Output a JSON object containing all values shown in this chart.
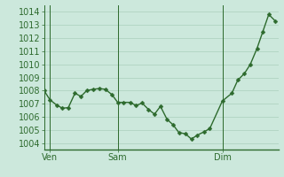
{
  "background_color": "#cce8dc",
  "plot_bg_color": "#cce8dc",
  "line_color": "#2d6a2d",
  "marker_color": "#2d6a2d",
  "grid_color": "#aacfbc",
  "axis_color": "#2d6a2d",
  "tick_label_color": "#2d6a2d",
  "ylim": [
    1003.5,
    1014.5
  ],
  "yticks": [
    1004,
    1005,
    1006,
    1007,
    1008,
    1009,
    1010,
    1011,
    1012,
    1013,
    1014
  ],
  "xtick_labels": [
    "Ven",
    "Sam",
    "Dim"
  ],
  "xtick_positions": [
    8,
    100,
    242
  ],
  "vline_positions": [
    8,
    100,
    242
  ],
  "xlim": [
    0,
    318
  ],
  "x": [
    0,
    8,
    17,
    25,
    33,
    42,
    50,
    58,
    67,
    75,
    83,
    92,
    100,
    108,
    117,
    125,
    133,
    142,
    150,
    158,
    167,
    175,
    183,
    192,
    200,
    208,
    217,
    225,
    242,
    255,
    263,
    272,
    280,
    289,
    297,
    305,
    314
  ],
  "y": [
    1008.0,
    1007.3,
    1006.9,
    1006.65,
    1006.7,
    1007.8,
    1007.55,
    1008.0,
    1008.1,
    1008.15,
    1008.1,
    1007.7,
    1007.1,
    1007.1,
    1007.1,
    1006.85,
    1007.05,
    1006.55,
    1006.2,
    1006.8,
    1005.8,
    1005.4,
    1004.8,
    1004.7,
    1004.3,
    1004.6,
    1004.85,
    1005.1,
    1007.2,
    1007.8,
    1008.8,
    1009.3,
    1010.0,
    1011.2,
    1012.5,
    1013.8,
    1013.3
  ],
  "tick_font_size": 7,
  "line_width": 1.0,
  "marker_size": 2.5
}
